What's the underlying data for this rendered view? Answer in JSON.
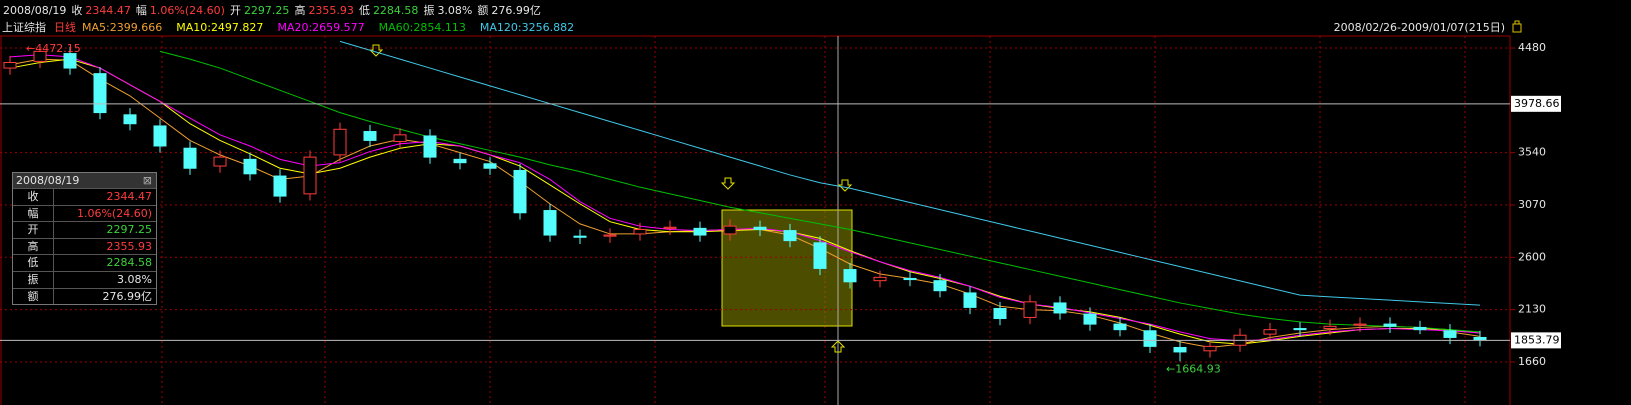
{
  "header": {
    "date": "2008/08/19",
    "items": [
      {
        "label": "收",
        "value": "2344.47",
        "color": "#ff3c3c"
      },
      {
        "label": "幅",
        "value": "1.06%(24.60)",
        "color": "#ff3c3c"
      },
      {
        "label": "开",
        "value": "2297.25",
        "color": "#3cd23c"
      },
      {
        "label": "高",
        "value": "2355.93",
        "color": "#ff3c3c"
      },
      {
        "label": "低",
        "value": "2284.58",
        "color": "#3cd23c"
      },
      {
        "label": "振",
        "value": "3.08%",
        "color": "#e6e6e6"
      },
      {
        "label": "额",
        "value": "276.99亿",
        "color": "#e6e6e6"
      }
    ]
  },
  "info_panel": {
    "title": "2008/08/19",
    "rows": [
      {
        "label": "收",
        "value": "2344.47",
        "color": "#ff3c3c"
      },
      {
        "label": "幅",
        "value": "1.06%(24.60)",
        "color": "#ff3c3c"
      },
      {
        "label": "开",
        "value": "2297.25",
        "color": "#3cd23c"
      },
      {
        "label": "高",
        "value": "2355.93",
        "color": "#ff3c3c"
      },
      {
        "label": "低",
        "value": "2284.58",
        "color": "#3cd23c"
      },
      {
        "label": "振",
        "value": "3.08%",
        "color": "#e6e6e6"
      },
      {
        "label": "额",
        "value": "276.99亿",
        "color": "#e6e6e6"
      }
    ]
  },
  "chart_data": {
    "type": "candlestick",
    "title": "上证综指",
    "period": "日线",
    "range": "2008/02/26-2009/01/07(215日)",
    "up_color": "#ff3c3c",
    "down_color": "#54fcfc",
    "ylim": [
      1408,
      4588
    ],
    "yticks": [
      4480,
      3540,
      3070,
      2600,
      2130,
      1660
    ],
    "grid": true,
    "crosshair_values": [
      3978.66,
      1853.79
    ],
    "candles": {
      "open": [
        4300,
        4360,
        4430,
        4250,
        3880,
        3780,
        3580,
        3420,
        3480,
        3330,
        3170,
        3520,
        3730,
        3640,
        3690,
        3480,
        3440,
        3380,
        3020,
        2790,
        2790,
        2810,
        2860,
        2860,
        2810,
        2870,
        2840,
        2730,
        2490,
        2390,
        2410,
        2390,
        2280,
        2140,
        2060,
        2190,
        2090,
        2000,
        1940,
        1790,
        1760,
        1810,
        1910,
        1960,
        1960,
        1990,
        2000,
        1970,
        1940,
        1880
      ],
      "high": [
        4410,
        4472.15,
        4490,
        4310,
        3940,
        3840,
        3640,
        3560,
        3540,
        3390,
        3560,
        3810,
        3790,
        3760,
        3750,
        3540,
        3500,
        3440,
        3080,
        2850,
        2860,
        2910,
        2930,
        2920,
        2940,
        2930,
        2900,
        2790,
        2550,
        2480,
        2470,
        2450,
        2340,
        2200,
        2260,
        2250,
        2150,
        2060,
        2000,
        1850,
        1860,
        1960,
        2010,
        2020,
        2040,
        2060,
        2060,
        2030,
        2000,
        1940
      ],
      "low": [
        4240,
        4300,
        4240,
        3840,
        3740,
        3540,
        3340,
        3360,
        3290,
        3090,
        3110,
        3460,
        3590,
        3580,
        3440,
        3390,
        3340,
        2940,
        2740,
        2720,
        2730,
        2750,
        2800,
        2740,
        2750,
        2790,
        2690,
        2440,
        2320,
        2330,
        2340,
        2240,
        2090,
        1990,
        2000,
        2040,
        1940,
        1890,
        1740,
        1664.93,
        1700,
        1750,
        1850,
        1890,
        1900,
        1930,
        1920,
        1910,
        1820,
        1800
      ],
      "close": [
        4350,
        4450,
        4300,
        3900,
        3800,
        3600,
        3400,
        3500,
        3350,
        3150,
        3500,
        3750,
        3650,
        3700,
        3500,
        3450,
        3400,
        3000,
        2800,
        2780,
        2800,
        2850,
        2870,
        2800,
        2880,
        2850,
        2750,
        2500,
        2380,
        2420,
        2400,
        2300,
        2150,
        2050,
        2200,
        2100,
        2000,
        1950,
        1800,
        1750,
        1800,
        1900,
        1950,
        1950,
        1980,
        2000,
        1980,
        1950,
        1880,
        1860
      ]
    },
    "series": [
      {
        "name": "MA5:2399.666",
        "color": "#f0a030",
        "values": [
          4330,
          4380,
          4370,
          4200,
          4050,
          3850,
          3650,
          3520,
          3420,
          3300,
          3330,
          3480,
          3600,
          3660,
          3620,
          3540,
          3460,
          3280,
          3080,
          2900,
          2810,
          2810,
          2830,
          2840,
          2850,
          2850,
          2800,
          2680,
          2540,
          2450,
          2410,
          2360,
          2270,
          2160,
          2130,
          2120,
          2080,
          2010,
          1920,
          1840,
          1790,
          1820,
          1880,
          1920,
          1950,
          1970,
          1980,
          1970,
          1930,
          1890
        ]
      },
      {
        "name": "MA10:2497.827",
        "color": "#ffff00",
        "values": [
          4300,
          4350,
          4380,
          4300,
          4150,
          4000,
          3800,
          3650,
          3530,
          3400,
          3350,
          3400,
          3500,
          3580,
          3620,
          3600,
          3520,
          3420,
          3250,
          3080,
          2920,
          2850,
          2830,
          2830,
          2840,
          2850,
          2830,
          2770,
          2660,
          2560,
          2470,
          2410,
          2340,
          2250,
          2180,
          2140,
          2110,
          2060,
          1990,
          1910,
          1840,
          1820,
          1850,
          1890,
          1920,
          1950,
          1960,
          1960,
          1950,
          1920
        ]
      },
      {
        "name": "MA20:2659.577",
        "color": "#ff00ff",
        "values": [
          4400,
          4420,
          4400,
          4300,
          4150,
          4000,
          3850,
          3700,
          3600,
          3480,
          3420,
          3450,
          3550,
          3620,
          3640,
          3600,
          3520,
          3450,
          3300,
          3100,
          2950,
          2880,
          2850,
          2840,
          2850,
          2860,
          2830,
          2750,
          2650,
          2560,
          2480,
          2420,
          2340,
          2240,
          2180,
          2150,
          2100,
          2050,
          2000,
          1930,
          1870,
          1850,
          1860,
          1900,
          1930,
          1950,
          1960,
          1950,
          1940,
          1920
        ]
      },
      {
        "name": "MA60:2854.113",
        "color": "#00c000",
        "values": [
          null,
          null,
          null,
          null,
          null,
          4450,
          4380,
          4300,
          4200,
          4100,
          4000,
          3900,
          3820,
          3750,
          3680,
          3620,
          3560,
          3500,
          3430,
          3370,
          3300,
          3230,
          3170,
          3110,
          3050,
          3000,
          2950,
          2900,
          2850,
          2790,
          2730,
          2670,
          2610,
          2550,
          2490,
          2430,
          2370,
          2310,
          2250,
          2190,
          2140,
          2090,
          2050,
          2020,
          2000,
          1990,
          1980,
          1970,
          1950,
          1930
        ]
      },
      {
        "name": "MA120:3256.882",
        "color": "#40c8e8",
        "values": [
          null,
          null,
          null,
          null,
          null,
          null,
          null,
          null,
          null,
          null,
          null,
          4540,
          4460,
          4380,
          4300,
          4220,
          4140,
          4060,
          3980,
          3900,
          3820,
          3740,
          3660,
          3580,
          3500,
          3420,
          3340,
          3270,
          3220,
          3156,
          3092,
          3028,
          2964,
          2900,
          2836,
          2772,
          2708,
          2644,
          2580,
          2516,
          2452,
          2388,
          2324,
          2260,
          2245,
          2230,
          2215,
          2200,
          2185,
          2170
        ]
      }
    ],
    "annotations": [
      {
        "text": "←4472.15",
        "index": 1,
        "at": "high"
      },
      {
        "text": "←1664.93",
        "index": 39,
        "at": "low"
      }
    ]
  }
}
